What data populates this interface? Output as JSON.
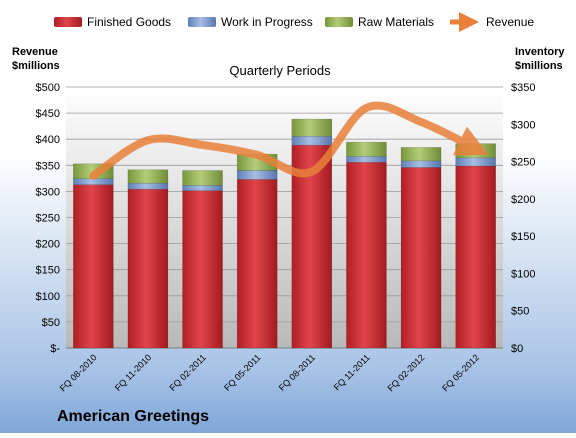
{
  "chart_data": {
    "type": "bar",
    "stacked": true,
    "title": "Quarterly Periods",
    "company": "American Greetings",
    "left_axis": {
      "title_line1": "Revenue",
      "title_line2": "$millions",
      "ylim": [
        0,
        500
      ],
      "ticks": [
        0,
        50,
        100,
        150,
        200,
        250,
        300,
        350,
        400,
        450,
        500
      ],
      "tick_labels": [
        "$-",
        "$50",
        "$100",
        "$150",
        "$200",
        "$250",
        "$300",
        "$350",
        "$400",
        "$450",
        "$500"
      ]
    },
    "right_axis": {
      "title_line1": "Inventory",
      "title_line2": "$millions",
      "ylim": [
        0,
        350
      ],
      "ticks": [
        0,
        50,
        100,
        150,
        200,
        250,
        300,
        350
      ],
      "tick_labels": [
        "$0",
        "$50",
        "$100",
        "$150",
        "$200",
        "$250",
        "$300",
        "$350"
      ]
    },
    "categories": [
      "FQ 08-2010",
      "FQ 11-2010",
      "FQ 02-2011",
      "FQ 05-2011",
      "FQ 08-2011",
      "FQ 11-2011",
      "FQ 02-2012",
      "FQ 05-2012"
    ],
    "series": [
      {
        "name": "Finished Goods",
        "axis": "right",
        "color": "#c0272d",
        "values": [
          219,
          213,
          211,
          226,
          272,
          249,
          242,
          244
        ]
      },
      {
        "name": "Work in Progress",
        "axis": "right",
        "color": "#6f8fc6",
        "values": [
          8,
          8,
          7,
          12,
          12,
          8,
          9,
          11
        ]
      },
      {
        "name": "Raw Materials",
        "axis": "right",
        "color": "#88a84a",
        "values": [
          20,
          18,
          20,
          22,
          23,
          19,
          18,
          19
        ]
      },
      {
        "name": "Revenue",
        "axis": "left",
        "type": "line",
        "color": "#e9803a",
        "values": [
          330,
          398,
          389,
          370,
          338,
          460,
          433,
          382
        ]
      }
    ],
    "legend_position": "top",
    "grid": true
  }
}
